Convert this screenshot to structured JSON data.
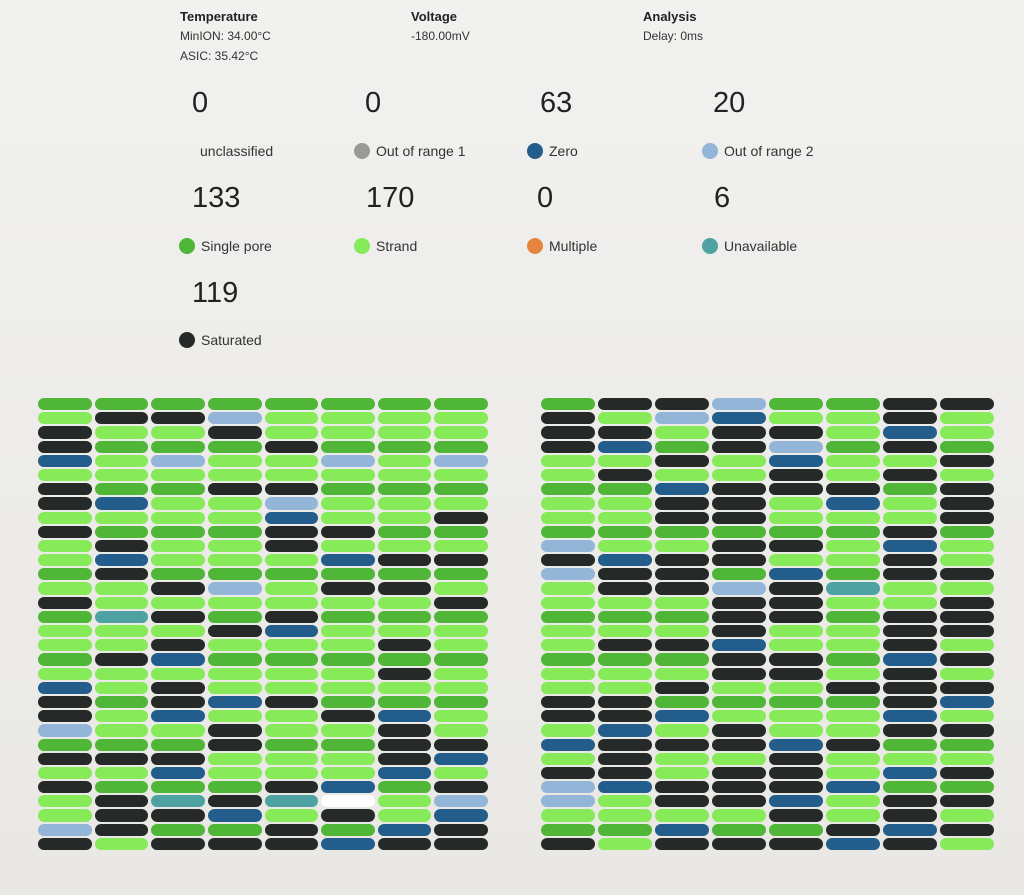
{
  "header": {
    "temperature": {
      "title": "Temperature",
      "minion": "MinION: 34.00°C",
      "asic": "ASIC: 35.42°C"
    },
    "voltage": {
      "title": "Voltage",
      "value": "-180.00mV"
    },
    "analysis": {
      "title": "Analysis",
      "delay": "Delay: 0ms"
    }
  },
  "legend": [
    {
      "key": "unclassified",
      "count": "0",
      "label": "unclassified",
      "color": ""
    },
    {
      "key": "out1",
      "count": "0",
      "label": "Out of range 1",
      "color": "#9a9a96"
    },
    {
      "key": "zero",
      "count": "63",
      "label": "Zero",
      "color": "#235d8c"
    },
    {
      "key": "out2",
      "count": "20",
      "label": "Out of range 2",
      "color": "#93b5d8"
    },
    {
      "key": "single",
      "count": "133",
      "label": "Single pore",
      "color": "#4fb637"
    },
    {
      "key": "strand",
      "count": "170",
      "label": "Strand",
      "color": "#86ea59"
    },
    {
      "key": "multiple",
      "count": "0",
      "label": "Multiple",
      "color": "#e5843f"
    },
    {
      "key": "unavailable",
      "count": "6",
      "label": "Unavailable",
      "color": "#4ea3a2"
    },
    {
      "key": "saturated",
      "count": "119",
      "label": "Saturated",
      "color": "#252a28"
    }
  ],
  "grids": [
    {
      "name": "left",
      "rows": [
        "SSSSSSSS",
        "SZZOSSTS",
        "ZSSZSSSS",
        "ZSSSZSSS",
        "ZSOSSOSO",
        "SSSSSSSS",
        "ZSSZZSSS",
        "ZZSSOSSS",
        "SSSSZSSZ",
        "ZSSSZZSS",
        "SZSSZSSS",
        "SZSSSZZZ",
        "SZSSSSSS",
        "SSZOSZZS",
        "ZSSSSSSZ",
        "SUZSZSSS",
        "SSSZZSSS",
        "SSZSSSZS",
        "SZZSSSSS",
        "SSSSSSZS",
        "ZSZSSSSS",
        "ZSZZZSSS",
        "ZSZSSZZS",
        "OSSZSSZS",
        "SSSZSSZZ",
        "ZZZSSSZZ",
        "SSZSSSZS",
        "ZSSSZZSZ",
        "SZUZUUSO",
        "SZZZSZSZ",
        "OZSSZSZZ",
        "ZSZZZZZZ"
      ]
    },
    {
      "name": "right",
      "rows": [
        "SZZOSSZZ",
        "ZSOZSSZS",
        "ZZSZZSZS",
        "ZZSZOSZS",
        "SSZSZSSZ",
        "SZSSZSZS",
        "SSZZZZSZ",
        "SSZZSZSZ",
        "SSZZSSSZ",
        "SSSSSSZS",
        "OSSZZSZS",
        "ZZZZSSZS",
        "OZZSZSZZ",
        "SZZOZUSS",
        "SSSZZSSZ",
        "SSSZZSZZ",
        "SSSZSSZZ",
        "SZZZSSZS",
        "SSSZZSZZ",
        "SSSZZSZS",
        "SSZSSZZZ",
        "ZZSSSSZZ",
        "ZZZSSSZS",
        "SZSZSSZZ",
        "ZZZZZZSS",
        "SZSSZSSS",
        "ZZSZZSZZ",
        "OZZZZZSS",
        "OSZZZSZZ",
        "SSSSZSZS",
        "SSZSSZZZ",
        "ZSZZZZZS"
      ]
    }
  ]
}
